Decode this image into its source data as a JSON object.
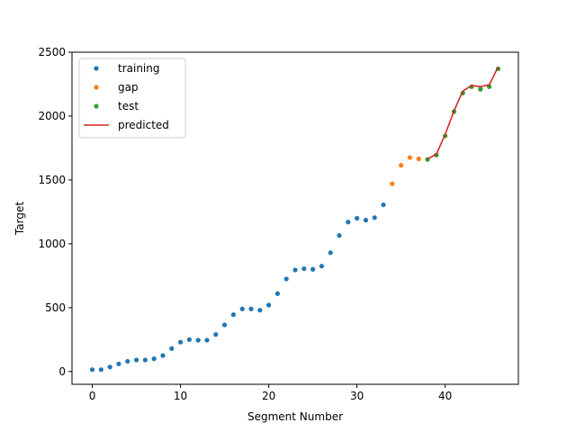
{
  "chart_data": {
    "type": "scatter",
    "title": "",
    "xlabel": "Segment Number",
    "ylabel": "Target",
    "xlim": [
      -2.3,
      48.3
    ],
    "ylim": [
      -100,
      2500
    ],
    "x_ticks": [
      0,
      10,
      20,
      30,
      40
    ],
    "y_ticks": [
      0,
      500,
      1000,
      1500,
      2000,
      2500
    ],
    "grid": false,
    "legend_position": "top-left",
    "series": [
      {
        "name": "training",
        "kind": "points",
        "color": "#1f77b4",
        "x": [
          0,
          1,
          2,
          3,
          4,
          5,
          6,
          7,
          8,
          9,
          10,
          11,
          12,
          13,
          14,
          15,
          16,
          17,
          18,
          19,
          20,
          21,
          22,
          23,
          24,
          25,
          26,
          27,
          28,
          29,
          30,
          31,
          32,
          33
        ],
        "y": [
          15,
          15,
          35,
          60,
          80,
          90,
          90,
          100,
          125,
          180,
          230,
          250,
          245,
          245,
          290,
          365,
          445,
          490,
          490,
          480,
          520,
          610,
          725,
          795,
          805,
          800,
          825,
          930,
          1065,
          1170,
          1200,
          1185,
          1205,
          1305
        ]
      },
      {
        "name": "gap",
        "kind": "points",
        "color": "#ff7f0e",
        "x": [
          34,
          35,
          36,
          37
        ],
        "y": [
          1470,
          1615,
          1675,
          1665
        ]
      },
      {
        "name": "test",
        "kind": "points",
        "color": "#2ca02c",
        "x": [
          38,
          39,
          40,
          41,
          42,
          43,
          44,
          45,
          46
        ],
        "y": [
          1660,
          1695,
          1845,
          2035,
          2180,
          2230,
          2210,
          2230,
          2370
        ]
      },
      {
        "name": "predicted",
        "kind": "line",
        "color": "#d62728",
        "x": [
          38,
          39,
          40,
          41,
          42,
          43,
          44,
          45,
          46
        ],
        "y": [
          1665,
          1700,
          1855,
          2040,
          2195,
          2240,
          2230,
          2245,
          2385
        ]
      }
    ]
  }
}
